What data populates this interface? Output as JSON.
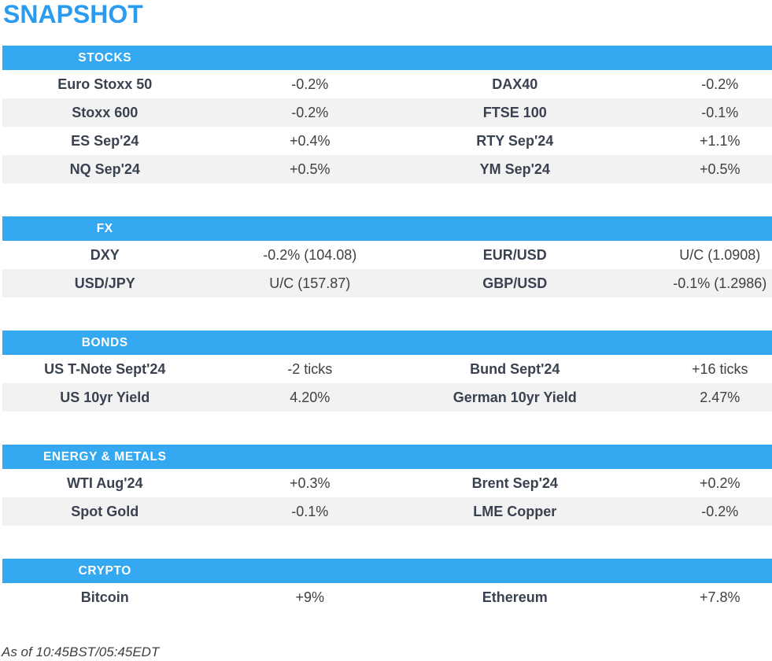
{
  "title": "SNAPSHOT",
  "footer": "As of 10:45BST/05:45EDT",
  "colors": {
    "title_blue": "#2b9bf0",
    "accent_blue": "#34a8f0",
    "row_alt": "#f2f2f2",
    "label_text": "#3a4150",
    "value_text": "#3f4040"
  },
  "sections": [
    {
      "header": "STOCKS",
      "rows": [
        {
          "label1": "Euro Stoxx 50",
          "value1": "-0.2%",
          "label2": "DAX40",
          "value2": "-0.2%"
        },
        {
          "label1": "Stoxx 600",
          "value1": "-0.2%",
          "label2": "FTSE 100",
          "value2": "-0.1%"
        },
        {
          "label1": "ES Sep'24",
          "value1": "+0.4%",
          "label2": "RTY Sep'24",
          "value2": "+1.1%"
        },
        {
          "label1": "NQ Sep'24",
          "value1": "+0.5%",
          "label2": "YM Sep'24",
          "value2": "+0.5%"
        }
      ]
    },
    {
      "header": "FX",
      "rows": [
        {
          "label1": "DXY",
          "value1": "-0.2% (104.08)",
          "label2": "EUR/USD",
          "value2": "U/C (1.0908)"
        },
        {
          "label1": "USD/JPY",
          "value1": "U/C (157.87)",
          "label2": "GBP/USD",
          "value2": "-0.1% (1.2986)"
        }
      ]
    },
    {
      "header": "BONDS",
      "rows": [
        {
          "label1": "US T-Note Sept'24",
          "value1": "-2 ticks",
          "label2": "Bund Sept'24",
          "value2": "+16 ticks"
        },
        {
          "label1": "US 10yr Yield",
          "value1": "4.20%",
          "label2": "German 10yr Yield",
          "value2": "2.47%"
        }
      ]
    },
    {
      "header": "ENERGY & METALS",
      "rows": [
        {
          "label1": "WTI Aug'24",
          "value1": "+0.3%",
          "label2": "Brent Sep'24",
          "value2": "+0.2%"
        },
        {
          "label1": "Spot Gold",
          "value1": "-0.1%",
          "label2": "LME Copper",
          "value2": "-0.2%"
        }
      ]
    },
    {
      "header": "CRYPTO",
      "rows": [
        {
          "label1": "Bitcoin",
          "value1": "+9%",
          "label2": "Ethereum",
          "value2": "+7.8%"
        }
      ]
    }
  ]
}
